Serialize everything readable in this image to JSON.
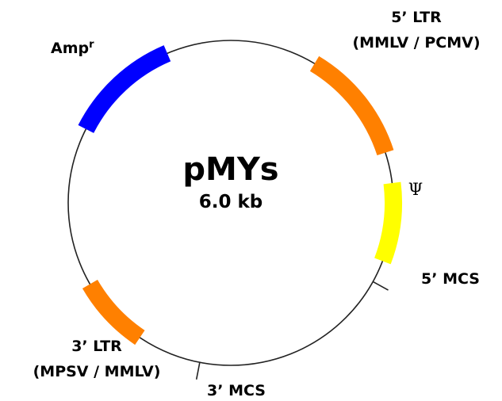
{
  "plasmid": {
    "name": "pMYs",
    "size": "6.0 kb"
  },
  "features": [
    {
      "id": "amp",
      "label": "Amp",
      "label_sup": "r",
      "start_deg": 297,
      "end_deg": 337,
      "color": "#0000ff"
    },
    {
      "id": "ltr5",
      "label_line1": "5’ LTR",
      "label_line2": "(MMLV / PCMV)",
      "start_deg": 31,
      "end_deg": 72,
      "color": "#ff8000"
    },
    {
      "id": "psi",
      "label": "Ψ",
      "start_deg": 83,
      "end_deg": 111,
      "color": "#ffff00"
    },
    {
      "id": "ltr3",
      "label_line1": "3’ LTR",
      "label_line2": "(MPSV / MMLV)",
      "start_deg": 214,
      "end_deg": 240,
      "color": "#ff8000"
    }
  ],
  "sites": [
    {
      "id": "mcs5",
      "label": "5’ MCS",
      "angle_deg": 119
    },
    {
      "id": "mcs3",
      "label": "3’ MCS",
      "angle_deg": 191
    }
  ],
  "colors": {
    "backbone": "#222222",
    "text": "#000000"
  }
}
